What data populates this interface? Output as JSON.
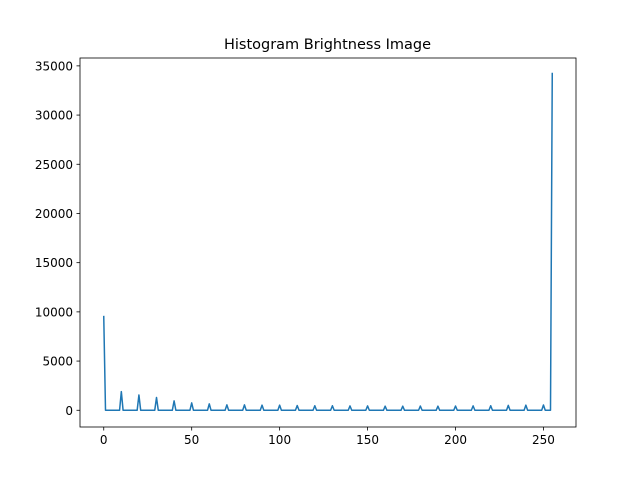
{
  "chart_data": {
    "type": "line",
    "title": "Histogram Brightness Image",
    "xlabel": "",
    "ylabel": "",
    "xlim": [
      -13.5,
      268.5
    ],
    "ylim": [
      -1700,
      35800
    ],
    "xticks": [
      0,
      50,
      100,
      150,
      200,
      250
    ],
    "yticks": [
      0,
      5000,
      10000,
      15000,
      20000,
      25000,
      30000,
      35000
    ],
    "grid": false,
    "legend": "none",
    "series": [
      {
        "color": "#1f77b4",
        "points": [
          [
            0,
            9600
          ],
          [
            1,
            0
          ],
          [
            9,
            0
          ],
          [
            10,
            1900
          ],
          [
            11,
            0
          ],
          [
            19,
            0
          ],
          [
            20,
            1550
          ],
          [
            21,
            0
          ],
          [
            29,
            0
          ],
          [
            30,
            1300
          ],
          [
            31,
            0
          ],
          [
            39,
            0
          ],
          [
            40,
            950
          ],
          [
            41,
            0
          ],
          [
            49,
            0
          ],
          [
            50,
            750
          ],
          [
            51,
            0
          ],
          [
            59,
            0
          ],
          [
            60,
            650
          ],
          [
            61,
            0
          ],
          [
            69,
            0
          ],
          [
            70,
            550
          ],
          [
            71,
            0
          ],
          [
            79,
            0
          ],
          [
            80,
            550
          ],
          [
            81,
            0
          ],
          [
            89,
            0
          ],
          [
            90,
            520
          ],
          [
            91,
            0
          ],
          [
            99,
            0
          ],
          [
            100,
            520
          ],
          [
            101,
            0
          ],
          [
            109,
            0
          ],
          [
            110,
            480
          ],
          [
            111,
            0
          ],
          [
            119,
            0
          ],
          [
            120,
            460
          ],
          [
            121,
            0
          ],
          [
            129,
            0
          ],
          [
            130,
            460
          ],
          [
            131,
            0
          ],
          [
            139,
            0
          ],
          [
            140,
            440
          ],
          [
            141,
            0
          ],
          [
            149,
            0
          ],
          [
            150,
            440
          ],
          [
            151,
            0
          ],
          [
            159,
            0
          ],
          [
            160,
            420
          ],
          [
            161,
            0
          ],
          [
            169,
            0
          ],
          [
            170,
            420
          ],
          [
            171,
            0
          ],
          [
            179,
            0
          ],
          [
            180,
            430
          ],
          [
            181,
            0
          ],
          [
            189,
            0
          ],
          [
            190,
            420
          ],
          [
            191,
            0
          ],
          [
            199,
            0
          ],
          [
            200,
            430
          ],
          [
            201,
            0
          ],
          [
            209,
            0
          ],
          [
            210,
            450
          ],
          [
            211,
            0
          ],
          [
            219,
            0
          ],
          [
            220,
            460
          ],
          [
            221,
            0
          ],
          [
            229,
            0
          ],
          [
            230,
            500
          ],
          [
            231,
            0
          ],
          [
            239,
            0
          ],
          [
            240,
            520
          ],
          [
            241,
            0
          ],
          [
            249,
            0
          ],
          [
            250,
            540
          ],
          [
            251,
            0
          ],
          [
            254,
            0
          ],
          [
            255,
            34300
          ]
        ]
      }
    ]
  }
}
